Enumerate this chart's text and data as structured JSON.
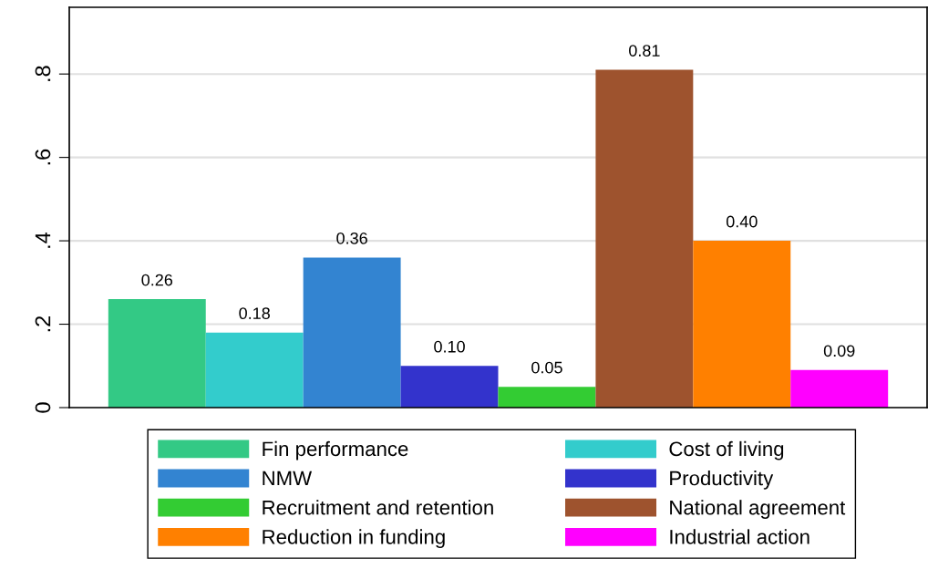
{
  "chart_data": {
    "type": "bar",
    "categories": [
      null
    ],
    "series": [
      {
        "name": "Fin performance",
        "color": "#33c985",
        "values": [
          0.26
        ],
        "value_labels": [
          "0.26"
        ]
      },
      {
        "name": "Cost of living",
        "color": "#33cccc",
        "values": [
          0.18
        ],
        "value_labels": [
          "0.18"
        ]
      },
      {
        "name": "NMW",
        "color": "#3384d1",
        "values": [
          0.36
        ],
        "value_labels": [
          "0.36"
        ]
      },
      {
        "name": "Productivity",
        "color": "#3333cc",
        "values": [
          0.1
        ],
        "value_labels": [
          "0.10"
        ]
      },
      {
        "name": "Recruitment and retention",
        "color": "#33cc33",
        "values": [
          0.05
        ],
        "value_labels": [
          "0.05"
        ]
      },
      {
        "name": "National agreement",
        "color": "#9e532e",
        "values": [
          0.81
        ],
        "value_labels": [
          "0.81"
        ]
      },
      {
        "name": "Reduction in funding",
        "color": "#ff8000",
        "values": [
          0.4
        ],
        "value_labels": [
          "0.40"
        ]
      },
      {
        "name": "Industrial action",
        "color": "#ff00ff",
        "values": [
          0.09
        ],
        "value_labels": [
          "0.09"
        ]
      }
    ],
    "ylim": [
      0,
      0.96
    ],
    "yticks": [
      {
        "value": 0,
        "label": "0"
      },
      {
        "value": 0.2,
        "label": ".2"
      },
      {
        "value": 0.4,
        "label": ".4"
      },
      {
        "value": 0.6,
        "label": ".6"
      },
      {
        "value": 0.8,
        "label": ".8"
      }
    ],
    "grid": "y",
    "legend": "bottom"
  }
}
